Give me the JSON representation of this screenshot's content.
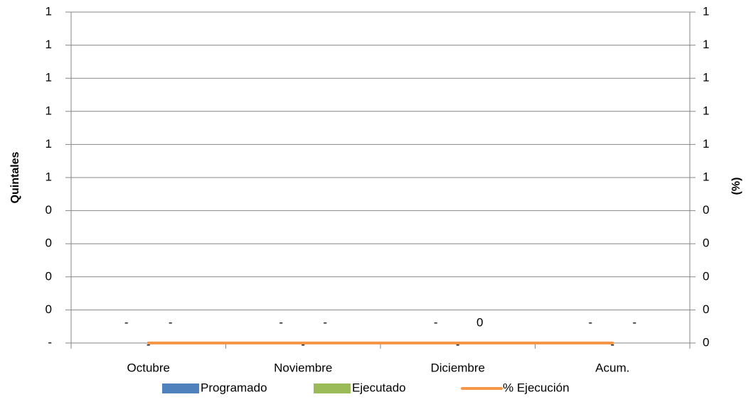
{
  "chart_data": {
    "type": "bar",
    "categories": [
      "Octubre",
      "Noviembre",
      "Diciembre",
      "Acum."
    ],
    "ylabel": "Quintales",
    "y2label": "(%)",
    "ylim": [
      0,
      1
    ],
    "yticks": [
      {
        "value": 0,
        "label": "-"
      },
      {
        "value": 0.1,
        "label": "0"
      },
      {
        "value": 0.2,
        "label": "0"
      },
      {
        "value": 0.3,
        "label": "0"
      },
      {
        "value": 0.4,
        "label": "0"
      },
      {
        "value": 0.5,
        "label": "1"
      },
      {
        "value": 0.6,
        "label": "1"
      },
      {
        "value": 0.7,
        "label": "1"
      },
      {
        "value": 0.8,
        "label": "1"
      },
      {
        "value": 0.9,
        "label": "1"
      },
      {
        "value": 1,
        "label": "1"
      }
    ],
    "y2lim": [
      0,
      1
    ],
    "y2ticks": [
      0,
      {
        "value": 0.1,
        "label": "0"
      },
      {
        "value": 0.2,
        "label": "0"
      },
      {
        "value": 0.3,
        "label": "0"
      },
      {
        "value": 0.4,
        "label": "0"
      },
      {
        "value": 0.5,
        "label": "1"
      },
      {
        "value": 0.6,
        "label": "1"
      },
      {
        "value": 0.7,
        "label": "1"
      },
      {
        "value": 0.8,
        "label": "1"
      },
      {
        "value": 0.9,
        "label": "1"
      },
      {
        "value": 1,
        "label": "1"
      }
    ],
    "grid": true,
    "legend": "bottom",
    "series": [
      {
        "name": "Programado",
        "color": "#4f81bd",
        "type": "bar",
        "values": [
          0,
          0,
          0,
          0
        ],
        "value_labels": [
          "-",
          "-",
          "-",
          "-"
        ]
      },
      {
        "name": "Ejecutado",
        "color": "#9bbb59",
        "type": "bar",
        "values": [
          0,
          0,
          0,
          0
        ],
        "value_labels": [
          "-",
          "-",
          "0",
          "-"
        ]
      },
      {
        "name": "% Ejecución",
        "color": "#f79646",
        "type": "line",
        "axis": "y2",
        "values": [
          0,
          0,
          0,
          0
        ],
        "value_labels": [
          "-",
          "-",
          "-",
          "-"
        ]
      }
    ]
  }
}
